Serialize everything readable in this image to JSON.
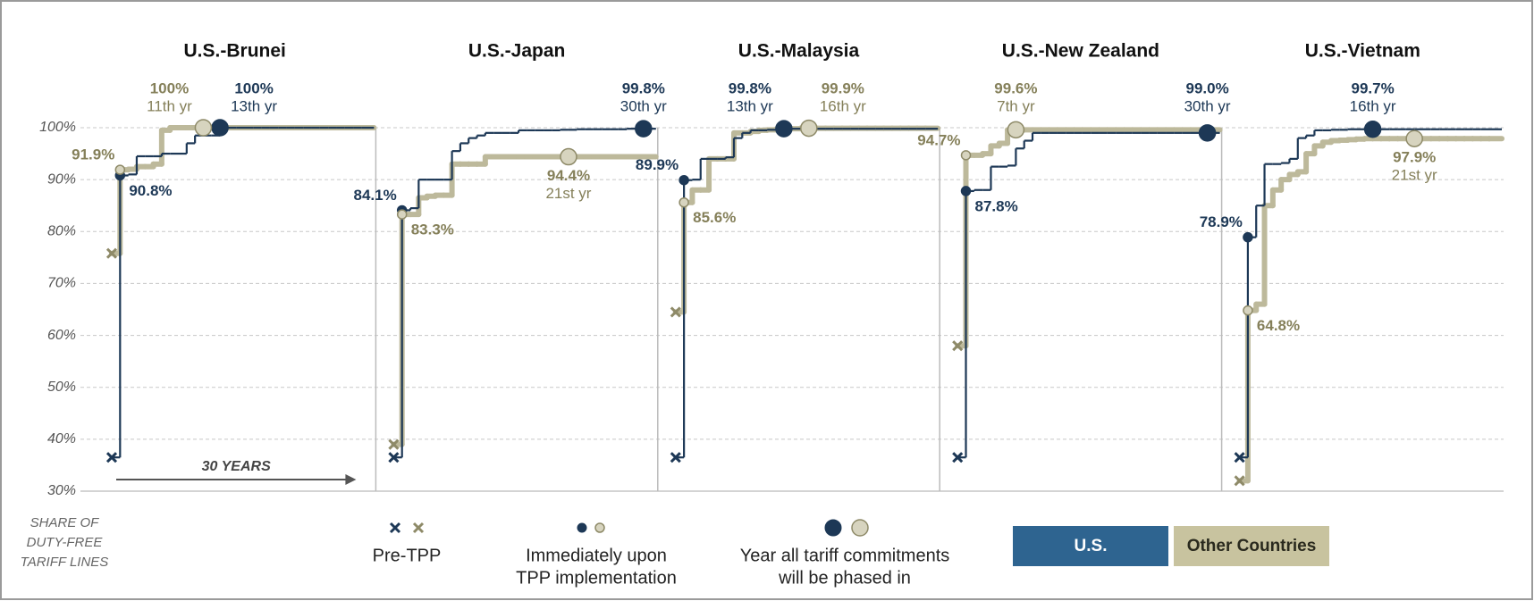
{
  "chart_data": {
    "type": "line",
    "ylabel": [
      "SHARE OF",
      "DUTY-FREE",
      "TARIFF LINES"
    ],
    "span_label": "30 YEARS",
    "ylim": [
      30,
      100
    ],
    "yticks": [
      {
        "value": 30,
        "label": "30%"
      },
      {
        "value": 40,
        "label": "40%"
      },
      {
        "value": 50,
        "label": "50%"
      },
      {
        "value": 60,
        "label": "60%"
      },
      {
        "value": 70,
        "label": "70%"
      },
      {
        "value": 80,
        "label": "80%"
      },
      {
        "value": 90,
        "label": "90%"
      },
      {
        "value": 100,
        "label": "100%"
      }
    ],
    "grid": true,
    "xlim": [
      0,
      30
    ],
    "x": [
      0,
      1,
      2,
      3,
      4,
      5,
      6,
      7,
      8,
      9,
      10,
      11,
      12,
      13,
      14,
      15,
      16,
      17,
      18,
      19,
      20,
      21,
      22,
      23,
      24,
      25,
      26,
      27,
      28,
      29,
      30
    ],
    "series": [
      {
        "name": "U.S.",
        "color": "#1d3856",
        "legend_color": "#2e6490"
      },
      {
        "name": "Other Countries",
        "color": "#bdb99b",
        "legend_color": "#c8c39f"
      }
    ],
    "markers": [
      {
        "label": [
          "Pre-TPP"
        ]
      },
      {
        "label": [
          "Immediately upon",
          "TPP implementation"
        ]
      },
      {
        "label": [
          "Year all tariff commitments",
          "will be phased in"
        ]
      }
    ],
    "panels": [
      {
        "title": "U.S.-Brunei",
        "series": [
          {
            "values": [
              36.5,
              90.8,
              91,
              94.5,
              94.5,
              94.5,
              95,
              95,
              95,
              97,
              98.5,
              98.5,
              98.5,
              100,
              100,
              100,
              100,
              100,
              100,
              100,
              100,
              100,
              100,
              100,
              100,
              100,
              100,
              100,
              100,
              100,
              100
            ],
            "value_labels": {
              "1": "90.8%",
              "13": "100%"
            },
            "phase_in": {
              "x": 13,
              "label": "13th yr"
            }
          },
          {
            "values": [
              75.8,
              91.9,
              92,
              92.5,
              92.5,
              93,
              99.5,
              100,
              100,
              100,
              100,
              100,
              100,
              100,
              100,
              100,
              100,
              100,
              100,
              100,
              100,
              100,
              100,
              100,
              100,
              100,
              100,
              100,
              100,
              100,
              100
            ],
            "value_labels": {
              "1": "91.9%",
              "11": "100%"
            },
            "phase_in": {
              "x": 11,
              "label": "11th yr"
            }
          }
        ]
      },
      {
        "title": "U.S.-Japan",
        "series": [
          {
            "values": [
              36.5,
              84.1,
              84.5,
              90,
              90,
              90,
              90,
              95.5,
              97,
              98,
              98.5,
              99,
              99,
              99,
              99,
              99.5,
              99.5,
              99.5,
              99.5,
              99.5,
              99.6,
              99.6,
              99.7,
              99.7,
              99.7,
              99.7,
              99.7,
              99.7,
              99.8,
              99.8,
              99.8
            ],
            "value_labels": {
              "1": "84.1%",
              "30": "99.8%"
            },
            "phase_in": {
              "x": 30,
              "label": "30th yr"
            }
          },
          {
            "values": [
              39,
              83.3,
              83.3,
              86.5,
              86.8,
              87,
              87,
              93,
              93,
              93,
              93,
              94.4,
              94.4,
              94.4,
              94.4,
              94.4,
              94.4,
              94.4,
              94.4,
              94.4,
              94.4,
              94.4,
              94.4,
              94.4,
              94.4,
              94.4,
              94.4,
              94.4,
              94.4,
              94.4,
              94.4
            ],
            "value_labels": {
              "1": "83.3%",
              "21": "94.4%"
            },
            "phase_in": {
              "x": 21,
              "label": "21st yr"
            }
          }
        ]
      },
      {
        "title": "U.S.-Malaysia",
        "series": [
          {
            "values": [
              36.5,
              89.9,
              90,
              94,
              94,
              94,
              94.3,
              98,
              99,
              99.5,
              99.5,
              99.6,
              99.7,
              99.8,
              99.8,
              99.8,
              99.8,
              99.8,
              99.8,
              99.8,
              99.8,
              99.8,
              99.8,
              99.8,
              99.8,
              99.8,
              99.8,
              99.8,
              99.8,
              99.8,
              99.8
            ],
            "value_labels": {
              "1": "89.9%",
              "13": "99.8%"
            },
            "phase_in": {
              "x": 13,
              "label": "13th yr"
            }
          },
          {
            "values": [
              64.5,
              85.6,
              88,
              88,
              94,
              94,
              94,
              99,
              99,
              99.3,
              99.5,
              99.6,
              99.7,
              99.8,
              99.8,
              99.9,
              99.9,
              99.9,
              99.9,
              99.9,
              99.9,
              99.9,
              99.9,
              99.9,
              99.9,
              99.9,
              99.9,
              99.9,
              99.9,
              99.9,
              99.9
            ],
            "value_labels": {
              "1": "85.6%",
              "16": "99.9%"
            },
            "phase_in": {
              "x": 16,
              "label": "16th yr"
            }
          }
        ]
      },
      {
        "title": "U.S.-New Zealand",
        "series": [
          {
            "values": [
              36.5,
              87.8,
              88,
              88,
              92.5,
              92.5,
              92.7,
              96,
              97.5,
              99,
              99,
              99,
              99,
              99,
              99,
              99,
              99,
              99,
              99,
              99,
              99,
              99,
              99,
              99,
              99,
              99,
              99,
              99,
              99,
              99,
              99
            ],
            "value_labels": {
              "1": "87.8%",
              "30": "99.0%"
            },
            "phase_in": {
              "x": 30,
              "label": "30th yr"
            }
          },
          {
            "values": [
              58,
              94.7,
              94.7,
              95,
              96.5,
              97,
              99.6,
              99.6,
              99.6,
              99.6,
              99.6,
              99.6,
              99.6,
              99.6,
              99.6,
              99.6,
              99.6,
              99.6,
              99.6,
              99.6,
              99.6,
              99.6,
              99.6,
              99.6,
              99.6,
              99.6,
              99.6,
              99.6,
              99.6,
              99.6,
              99.6
            ],
            "value_labels": {
              "1": "94.7%",
              "7": "99.6%"
            },
            "phase_in": {
              "x": 7,
              "label": "7th yr"
            }
          }
        ]
      },
      {
        "title": "U.S.-Vietnam",
        "series": [
          {
            "values": [
              36.5,
              78.9,
              85,
              93,
              93,
              93.2,
              94,
              98,
              98.5,
              99.5,
              99.5,
              99.6,
              99.6,
              99.7,
              99.7,
              99.7,
              99.7,
              99.7,
              99.7,
              99.7,
              99.7,
              99.7,
              99.7,
              99.7,
              99.7,
              99.7,
              99.7,
              99.7,
              99.7,
              99.7,
              99.7
            ],
            "value_labels": {
              "1": "78.9%",
              "16": "99.7%"
            },
            "phase_in": {
              "x": 16,
              "label": "16th yr"
            }
          },
          {
            "values": [
              32,
              64.8,
              66,
              85,
              88,
              90,
              91,
              91.5,
              95,
              96.5,
              97.2,
              97.5,
              97.6,
              97.7,
              97.8,
              97.9,
              97.9,
              97.9,
              97.9,
              97.9,
              97.9,
              97.9,
              97.9,
              97.9,
              97.9,
              97.9,
              97.9,
              97.9,
              97.9,
              97.9,
              97.9
            ],
            "value_labels": {
              "1": "64.8%",
              "21": "97.9%"
            },
            "phase_in": {
              "x": 21,
              "label": "21st yr"
            }
          }
        ]
      }
    ]
  }
}
